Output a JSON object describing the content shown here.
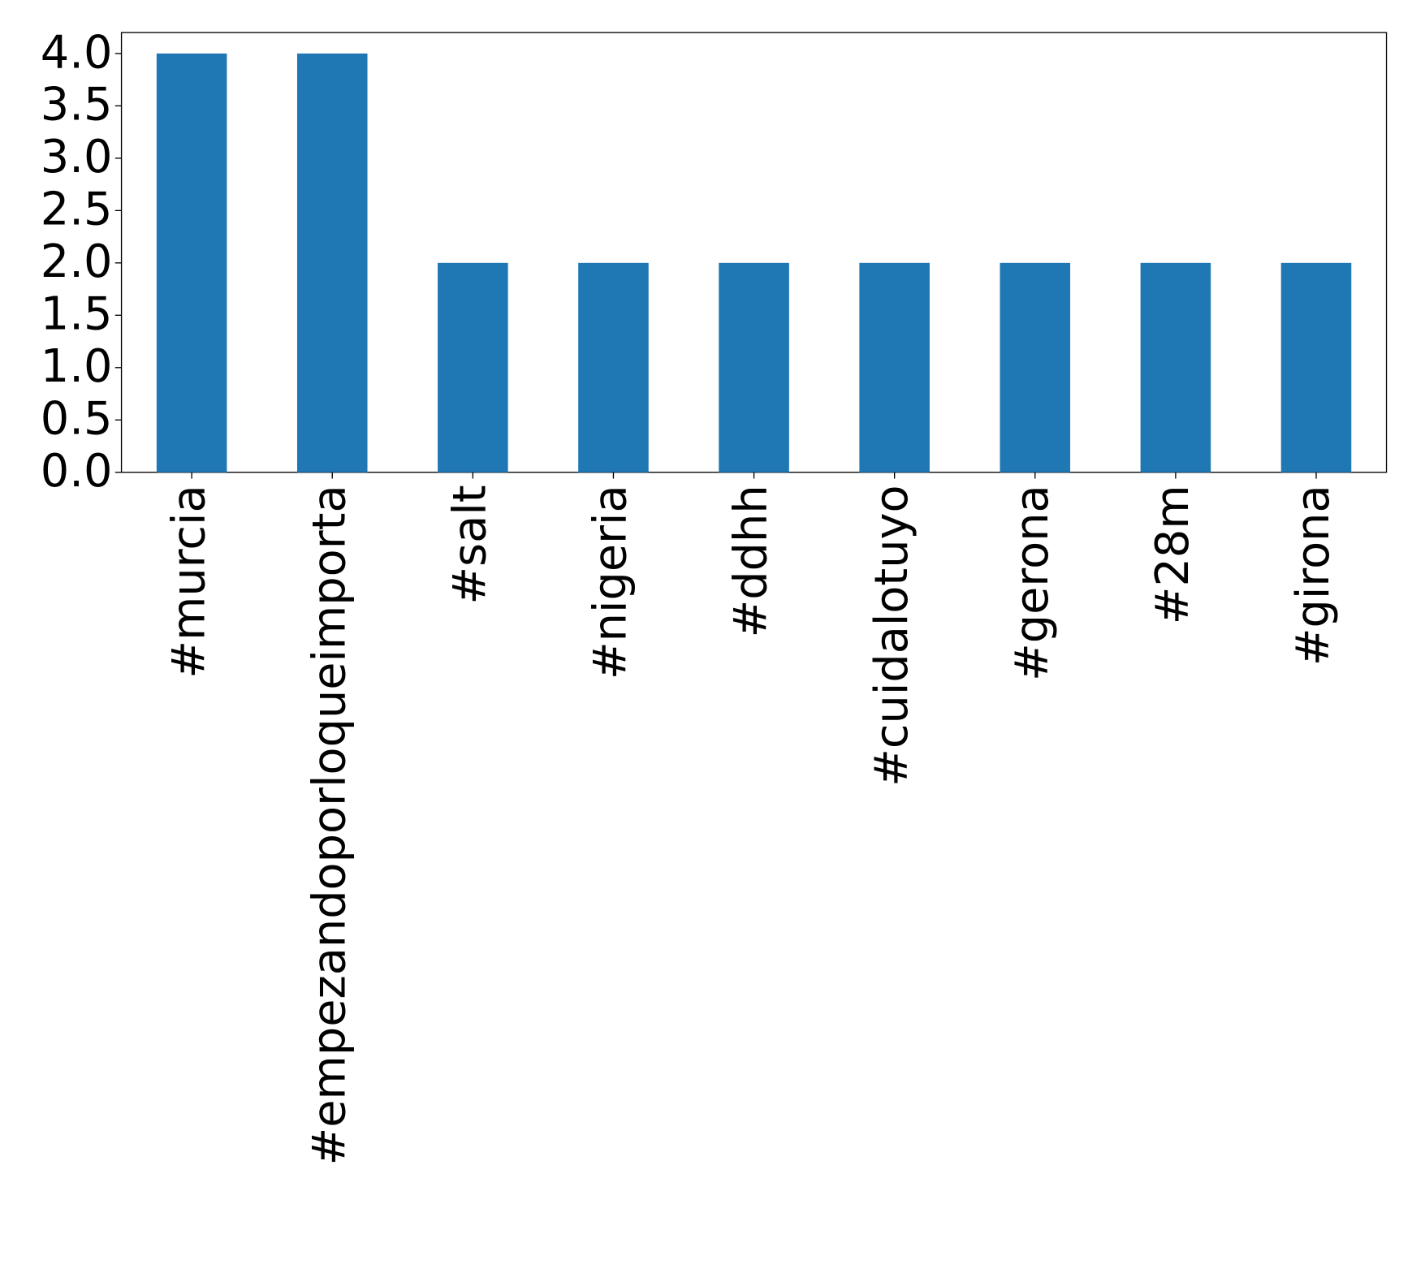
{
  "chart_data": {
    "type": "bar",
    "categories": [
      "#murcia",
      "#empezandoporloqueimporta",
      "#salt",
      "#nigeria",
      "#ddhh",
      "#cuidalotuyo",
      "#gerona",
      "#28m",
      "#girona"
    ],
    "values": [
      4,
      4,
      2,
      2,
      2,
      2,
      2,
      2,
      2
    ],
    "color": "#1f77b4",
    "ylim": [
      0,
      4.2
    ],
    "yticks": [
      {
        "value": 0,
        "label": "0.0"
      },
      {
        "value": 0.5,
        "label": "0.5"
      },
      {
        "value": 1,
        "label": "1.0"
      },
      {
        "value": 1.5,
        "label": "1.5"
      },
      {
        "value": 2,
        "label": "2.0"
      },
      {
        "value": 2.5,
        "label": "2.5"
      },
      {
        "value": 3,
        "label": "3.0"
      },
      {
        "value": 3.5,
        "label": "3.5"
      },
      {
        "value": 4,
        "label": "4.0"
      }
    ],
    "grid": false
  }
}
